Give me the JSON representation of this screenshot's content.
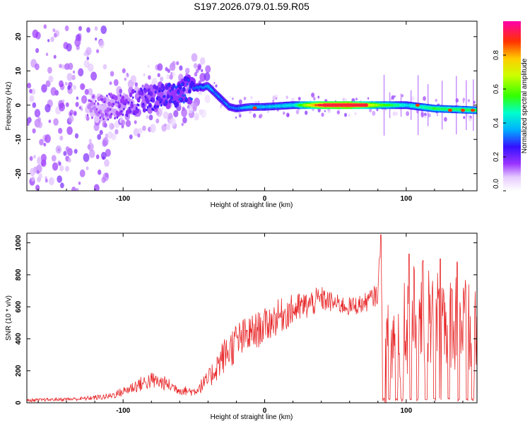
{
  "title": "S197.2026.079.01.59.R05",
  "colors": {
    "snr_line": "#e8292b",
    "axis": "#000000"
  },
  "chart_data": [
    {
      "type": "heatmap",
      "name": "spectrogram",
      "xlabel": "Height of straight line (km)",
      "ylabel": "Frequency (Hz)",
      "xlim": [
        -168,
        150
      ],
      "ylim": [
        -25,
        24.5
      ],
      "x_ticks": [
        -100,
        0,
        100
      ],
      "y_ticks": [
        -20,
        -10,
        0,
        10,
        20
      ],
      "colorbar": {
        "label": "Normalized spectral amplitude",
        "range": [
          0,
          1
        ],
        "ticks": [
          "0.0",
          "0.2",
          "0.4",
          "0.6",
          "0.8"
        ],
        "colormap": "rainbow (white-purple-blue-cyan-green-yellow-red)"
      },
      "ridge": {
        "x": [
          -120,
          -100,
          -80,
          -60,
          -50,
          -40,
          -35,
          -30,
          -25,
          -20,
          -10,
          0,
          20,
          40,
          60,
          80,
          100,
          120,
          150
        ],
        "freq": [
          -1,
          0,
          2,
          3.5,
          5,
          5.5,
          3.5,
          1.5,
          -0.5,
          -1,
          -0.5,
          -0.5,
          0,
          0,
          0,
          0,
          0,
          -1,
          -1.5
        ],
        "amplitude": [
          0.15,
          0.2,
          0.25,
          0.3,
          0.3,
          0.35,
          0.3,
          0.3,
          0.3,
          0.3,
          0.35,
          0.35,
          0.4,
          0.9,
          0.95,
          0.6,
          0.4,
          0.5,
          0.5
        ]
      }
    },
    {
      "type": "line",
      "name": "snr",
      "xlabel": "Height of straight line (km)",
      "ylabel": "SNR (10 * v/v)",
      "xlim": [
        -168,
        150
      ],
      "ylim": [
        0,
        1060
      ],
      "x_ticks": [
        -100,
        0,
        100
      ],
      "y_ticks": [
        0,
        200,
        400,
        600,
        800,
        1000
      ],
      "envelope": {
        "x": [
          -168,
          -150,
          -130,
          -110,
          -100,
          -90,
          -80,
          -70,
          -60,
          -50,
          -40,
          -30,
          -20,
          -10,
          0,
          10,
          20,
          30,
          40,
          50,
          60,
          70,
          80,
          82,
          84,
          90,
          100,
          110,
          120,
          130,
          140,
          150
        ],
        "y": [
          15,
          20,
          25,
          40,
          70,
          110,
          140,
          120,
          80,
          70,
          140,
          280,
          380,
          430,
          480,
          540,
          580,
          610,
          650,
          620,
          600,
          620,
          680,
          1050,
          260,
          380,
          500,
          560,
          520,
          560,
          480,
          380
        ],
        "noise_amplitude": [
          10,
          10,
          12,
          20,
          30,
          45,
          55,
          45,
          30,
          30,
          60,
          110,
          130,
          120,
          110,
          110,
          100,
          90,
          80,
          60,
          60,
          60,
          70,
          60,
          300,
          320,
          330,
          340,
          340,
          340,
          330,
          300
        ]
      },
      "dropouts_x": [
        84,
        88,
        93,
        97,
        103,
        108,
        114,
        120,
        124,
        130,
        137,
        143,
        147
      ],
      "notable_peaks": [
        {
          "x": 82,
          "y": 1050
        },
        {
          "x": 102,
          "y": 930
        },
        {
          "x": 124,
          "y": 900
        },
        {
          "x": 136,
          "y": 880
        }
      ]
    }
  ]
}
